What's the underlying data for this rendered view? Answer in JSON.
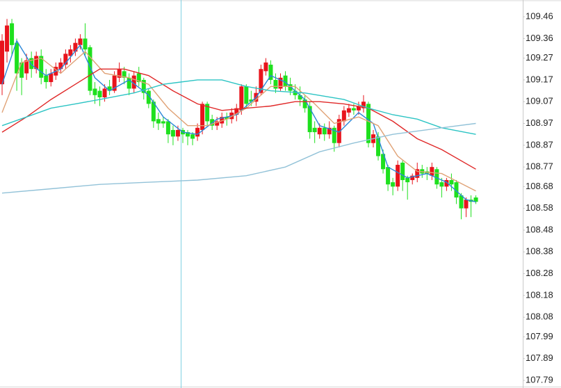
{
  "chart_data": {
    "type": "candlestick",
    "up_color": "#e8141c",
    "down_color": "#1ee01e",
    "xlim": [
      -0.43,
      106.6
    ],
    "ylim": [
      107.755,
      109.537
    ],
    "yticks": [
      109.46,
      109.36,
      109.27,
      109.17,
      109.07,
      108.97,
      108.87,
      108.77,
      108.68,
      108.58,
      108.48,
      108.38,
      108.28,
      108.18,
      108.08,
      107.99,
      107.89,
      107.79
    ],
    "open": [
      109.15,
      109.3,
      109.43,
      109.34,
      109.25,
      109.2,
      109.27,
      109.22,
      109.28,
      109.19,
      109.16,
      109.19,
      109.22,
      109.24,
      109.28,
      109.3,
      109.33,
      109.36,
      109.32,
      109.13,
      109.12,
      109.09,
      109.14,
      109.12,
      109.18,
      109.21,
      109.18,
      109.13,
      109.2,
      109.17,
      109.12,
      109.07,
      108.99,
      108.98,
      108.98,
      108.94,
      108.91,
      108.94,
      108.93,
      108.92,
      108.91,
      108.94,
      109.06,
      108.99,
      108.96,
      108.97,
      109.0,
      108.99,
      109.01,
      109.03,
      109.14,
      109.08,
      109.07,
      109.11,
      109.21,
      109.24,
      109.17,
      109.13,
      109.19,
      109.15,
      109.12,
      109.1,
      109.08,
      109.05,
      108.95,
      108.92,
      108.95,
      108.92,
      108.95,
      108.88,
      108.98,
      109.02,
      109.04,
      109.03,
      109.04,
      109.06,
      108.88,
      108.91,
      108.83,
      108.77,
      108.7,
      108.68,
      108.79,
      108.72,
      108.71,
      108.72,
      108.76,
      108.75,
      108.73,
      108.76,
      108.7,
      108.68,
      108.71,
      108.7,
      108.64,
      108.58,
      108.62,
      108.63
    ],
    "high": [
      109.38,
      109.45,
      109.45,
      109.36,
      109.27,
      109.29,
      109.3,
      109.3,
      109.31,
      109.22,
      109.22,
      109.25,
      109.27,
      109.31,
      109.33,
      109.36,
      109.38,
      109.43,
      109.33,
      109.16,
      109.14,
      109.15,
      109.17,
      109.21,
      109.25,
      109.23,
      109.2,
      109.21,
      109.23,
      109.18,
      109.13,
      109.08,
      109.02,
      109.0,
      108.99,
      108.96,
      108.96,
      108.95,
      108.94,
      108.93,
      108.97,
      109.07,
      109.07,
      109.01,
      109.0,
      109.02,
      109.02,
      109.04,
      109.06,
      109.15,
      109.15,
      109.12,
      109.14,
      109.24,
      109.27,
      109.26,
      109.2,
      109.2,
      109.21,
      109.18,
      109.15,
      109.14,
      109.1,
      109.07,
      108.98,
      108.97,
      108.97,
      108.98,
      108.96,
      109.01,
      109.05,
      109.06,
      109.06,
      109.07,
      109.1,
      109.07,
      108.94,
      108.93,
      108.85,
      108.78,
      108.72,
      108.8,
      108.8,
      108.73,
      108.74,
      108.79,
      108.78,
      108.77,
      108.79,
      108.77,
      108.72,
      108.72,
      108.74,
      108.71,
      108.65,
      108.63,
      108.64,
      108.64
    ],
    "low": [
      109.1,
      109.25,
      109.28,
      109.12,
      109.1,
      109.17,
      109.18,
      109.2,
      109.15,
      109.13,
      109.14,
      109.17,
      109.2,
      109.22,
      109.25,
      109.28,
      109.31,
      109.28,
      109.1,
      109.06,
      109.05,
      109.07,
      109.1,
      109.11,
      109.16,
      109.15,
      109.1,
      109.11,
      109.14,
      109.08,
      109.04,
      108.95,
      108.94,
      108.95,
      108.88,
      108.87,
      108.89,
      108.88,
      108.87,
      108.87,
      108.89,
      108.92,
      108.96,
      108.94,
      108.94,
      108.95,
      108.96,
      108.97,
      108.98,
      109.01,
      109.04,
      109.05,
      109.05,
      109.1,
      109.19,
      109.15,
      109.11,
      109.12,
      109.12,
      109.1,
      109.08,
      109.05,
      109.02,
      108.9,
      108.88,
      108.9,
      108.89,
      108.9,
      108.84,
      108.86,
      108.96,
      109.0,
      109.01,
      109.01,
      109.02,
      108.86,
      108.86,
      108.8,
      108.74,
      108.66,
      108.64,
      108.66,
      108.66,
      108.62,
      108.69,
      108.7,
      108.72,
      108.71,
      108.71,
      108.67,
      108.63,
      108.66,
      108.66,
      108.6,
      108.53,
      108.54,
      108.54,
      108.6
    ],
    "close": [
      109.35,
      109.42,
      109.33,
      109.2,
      109.18,
      109.26,
      109.22,
      109.28,
      109.18,
      109.16,
      109.2,
      109.23,
      109.25,
      109.29,
      109.31,
      109.34,
      109.36,
      109.31,
      109.12,
      109.1,
      109.09,
      109.13,
      109.12,
      109.19,
      109.22,
      109.18,
      109.13,
      109.19,
      109.16,
      109.11,
      109.06,
      108.98,
      108.97,
      108.97,
      108.92,
      108.91,
      108.94,
      108.92,
      108.91,
      108.9,
      108.95,
      109.06,
      108.98,
      108.96,
      108.98,
      109.0,
      108.99,
      109.02,
      109.04,
      109.14,
      109.06,
      109.07,
      109.11,
      109.22,
      109.25,
      109.17,
      109.13,
      109.18,
      109.14,
      109.12,
      109.1,
      109.08,
      109.04,
      108.93,
      108.93,
      108.95,
      108.92,
      108.95,
      108.88,
      108.99,
      109.03,
      109.04,
      109.03,
      109.05,
      109.07,
      108.88,
      108.92,
      108.82,
      108.76,
      108.69,
      108.68,
      108.78,
      108.71,
      108.7,
      108.73,
      108.76,
      108.74,
      108.74,
      108.77,
      108.69,
      108.68,
      108.71,
      108.69,
      108.63,
      108.58,
      108.62,
      108.61,
      108.61
    ],
    "lines": [
      {
        "color": "#2a86d8",
        "x": [
          0,
          3,
          6,
          9,
          12,
          16,
          19,
          22,
          26,
          30,
          33,
          37,
          40,
          44,
          48,
          52,
          55,
          58,
          62,
          65,
          69,
          73,
          76,
          79,
          83,
          87,
          91,
          95,
          97
        ],
        "values": [
          109.15,
          109.35,
          109.24,
          109.19,
          109.22,
          109.33,
          109.18,
          109.12,
          109.17,
          109.1,
          109.0,
          108.93,
          108.92,
          108.99,
          109.01,
          109.09,
          109.19,
          109.16,
          109.08,
          108.96,
          108.93,
          109.02,
          108.97,
          108.77,
          108.72,
          108.74,
          108.7,
          108.62,
          108.61
        ]
      },
      {
        "color": "#e0a276",
        "x": [
          0,
          4,
          8,
          12,
          17,
          21,
          26,
          30,
          34,
          38,
          42,
          46,
          50,
          55,
          60,
          64,
          68,
          73,
          77,
          81,
          85,
          90,
          97
        ],
        "values": [
          109.02,
          109.25,
          109.27,
          109.2,
          109.3,
          109.2,
          109.18,
          109.15,
          109.04,
          108.96,
          108.96,
          108.99,
          109.04,
          109.14,
          109.14,
          109.06,
          108.97,
          109.0,
          108.96,
          108.82,
          108.75,
          108.74,
          108.66
        ]
      },
      {
        "color": "#e02828",
        "x": [
          0,
          5,
          10,
          15,
          20,
          25,
          30,
          35,
          40,
          45,
          50,
          55,
          60,
          65,
          70,
          75,
          80,
          85,
          90,
          97
        ],
        "values": [
          108.93,
          109.0,
          109.08,
          109.15,
          109.22,
          109.22,
          109.19,
          109.12,
          109.06,
          109.03,
          109.04,
          109.05,
          109.07,
          109.07,
          109.06,
          109.04,
          108.98,
          108.9,
          108.85,
          108.76
        ]
      },
      {
        "color": "#2cc4c4",
        "x": [
          0,
          5,
          10,
          15,
          20,
          27,
          33,
          40,
          45,
          50,
          55,
          62,
          70,
          75,
          80,
          85,
          90,
          97
        ],
        "values": [
          108.96,
          109.0,
          109.04,
          109.06,
          109.08,
          109.11,
          109.15,
          109.17,
          109.17,
          109.14,
          109.12,
          109.11,
          109.08,
          109.04,
          109.01,
          108.99,
          108.95,
          108.92
        ]
      },
      {
        "color": "#92c2d8",
        "x": [
          0,
          10,
          20,
          30,
          40,
          50,
          58,
          65,
          72,
          80,
          90,
          97
        ],
        "values": [
          108.65,
          108.67,
          108.69,
          108.7,
          108.71,
          108.73,
          108.77,
          108.84,
          108.88,
          108.92,
          108.95,
          108.97
        ]
      }
    ]
  }
}
